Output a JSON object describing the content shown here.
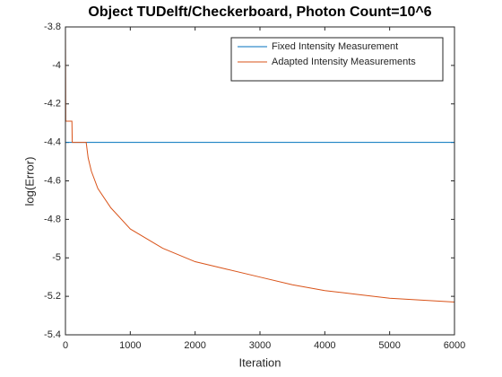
{
  "chart_data": {
    "type": "line",
    "title": "Object TUDelft/Checkerboard, Photon Count=10^6",
    "xlabel": "Iteration",
    "ylabel": "log(Error)",
    "series": [
      {
        "name": "Fixed Intensity Measurement",
        "color": "#0072bd",
        "x": [
          0,
          6000
        ],
        "values": [
          -4.4,
          -4.4
        ]
      },
      {
        "name": "Adapted Intensity Measurements",
        "color": "#d95319",
        "x": [
          0,
          5,
          100,
          105,
          320,
          350,
          400,
          500,
          700,
          1000,
          1500,
          2000,
          2500,
          3000,
          3500,
          4000,
          4500,
          5000,
          5500,
          6000
        ],
        "values": [
          -3.8,
          -4.29,
          -4.29,
          -4.4,
          -4.4,
          -4.48,
          -4.55,
          -4.64,
          -4.74,
          -4.85,
          -4.95,
          -5.02,
          -5.06,
          -5.1,
          -5.14,
          -5.17,
          -5.19,
          -5.21,
          -5.22,
          -5.23
        ]
      }
    ],
    "xlim": [
      0,
      6000
    ],
    "xticks": [
      0,
      1000,
      2000,
      3000,
      4000,
      5000,
      6000
    ],
    "ylim": [
      -5.4,
      -3.8
    ],
    "yticks": [
      -5.4,
      -5.2,
      -5,
      -4.8,
      -4.6,
      -4.4,
      -4.2,
      -4,
      -3.8
    ],
    "legend": "top-right"
  }
}
